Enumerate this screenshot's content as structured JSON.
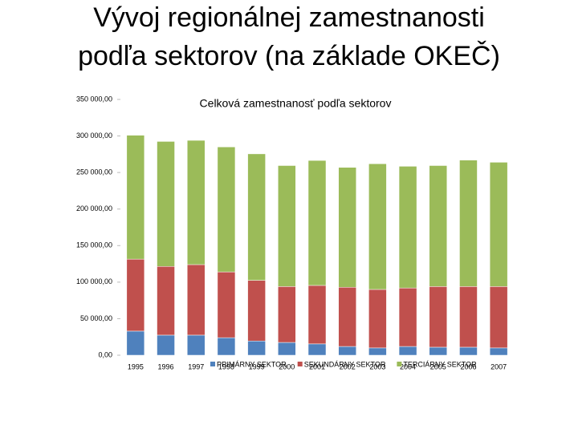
{
  "slide_title": [
    "Vývoj regionálnej zamestnanosti",
    "podľa sektorov (na základe OKEČ)"
  ],
  "chart_data": {
    "type": "stacked_bar",
    "title": "Celková zamestnanosť podľa sektorov",
    "categories": [
      "1995",
      "1996",
      "1997",
      "1998",
      "1999",
      "2000",
      "2001",
      "2002",
      "2003",
      "2004",
      "2005",
      "2006",
      "2007"
    ],
    "series": [
      {
        "name": "PRIMÁRNY SEKTOR",
        "color": "#4f81bd",
        "values": [
          33000,
          27500,
          27500,
          24000,
          19500,
          17500,
          15500,
          12000,
          10000,
          12000,
          11000,
          11000,
          10000
        ]
      },
      {
        "name": "SEKUNDÁRNY SEKTOR",
        "color": "#c0504d",
        "values": [
          98500,
          94000,
          96500,
          90000,
          83000,
          76500,
          80000,
          81000,
          80000,
          80000,
          83000,
          83000,
          84000
        ]
      },
      {
        "name": "TERCIÁRNY SEKTOR",
        "color": "#9bbb59",
        "values": [
          169500,
          171000,
          170000,
          171000,
          173000,
          165500,
          171000,
          164000,
          172000,
          166500,
          165500,
          173000,
          170000
        ]
      }
    ],
    "ylim": [
      0,
      350000
    ],
    "yticks": [
      {
        "value": 0,
        "label": "0,00"
      },
      {
        "value": 50000,
        "label": "50 000,00"
      },
      {
        "value": 100000,
        "label": "100 000,00"
      },
      {
        "value": 150000,
        "label": "150 000,00"
      },
      {
        "value": 200000,
        "label": "200 000,00"
      },
      {
        "value": 250000,
        "label": "250 000,00"
      },
      {
        "value": 300000,
        "label": "300 000,00"
      },
      {
        "value": 350000,
        "label": "350 000,00"
      }
    ],
    "legend": "bottom"
  }
}
